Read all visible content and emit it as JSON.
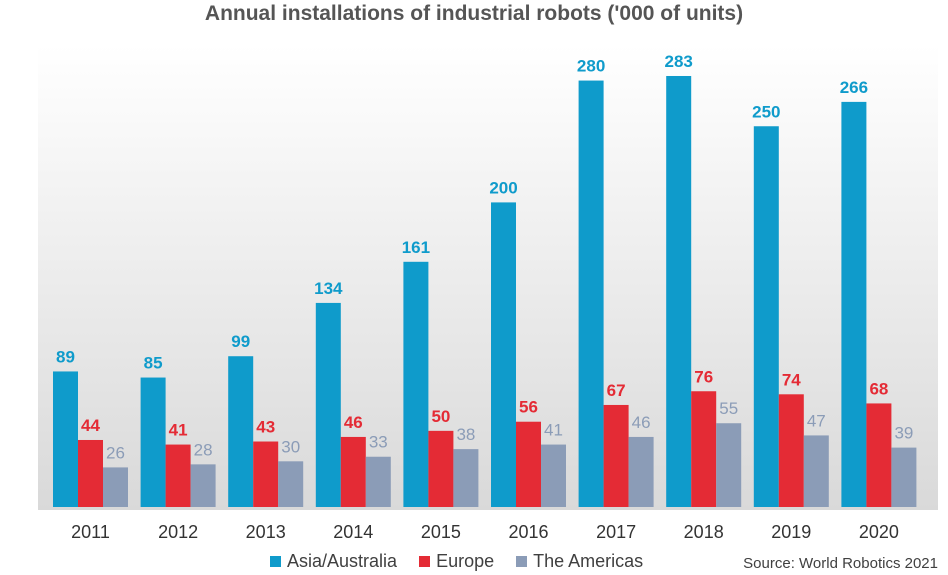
{
  "title": "Annual installations of industrial robots ('000 of units)",
  "source": "Source: World Robotics 2021",
  "colors": {
    "asia": "#0f9bcb",
    "europe": "#e42b35",
    "americas": "#8b9cb7",
    "background_top": "#ffffff",
    "background_bottom": "#d9d9d9"
  },
  "chart_data": {
    "type": "bar",
    "title": "Annual installations of industrial robots ('000 of units)",
    "categories": [
      "2011",
      "2012",
      "2013",
      "2014",
      "2015",
      "2016",
      "2017",
      "2018",
      "2019",
      "2020"
    ],
    "series": [
      {
        "name": "Asia/Australia",
        "color": "#0f9bcb",
        "values": [
          89,
          85,
          99,
          134,
          161,
          200,
          280,
          283,
          250,
          266
        ]
      },
      {
        "name": "Europe",
        "color": "#e42b35",
        "values": [
          44,
          41,
          43,
          46,
          50,
          56,
          67,
          76,
          74,
          68
        ]
      },
      {
        "name": "The Americas",
        "color": "#8b9cb7",
        "values": [
          26,
          28,
          30,
          33,
          38,
          41,
          46,
          55,
          47,
          39
        ]
      }
    ],
    "ylim": [
      0,
      290
    ],
    "grid": false,
    "legend_position": "bottom",
    "data_labels": true
  }
}
